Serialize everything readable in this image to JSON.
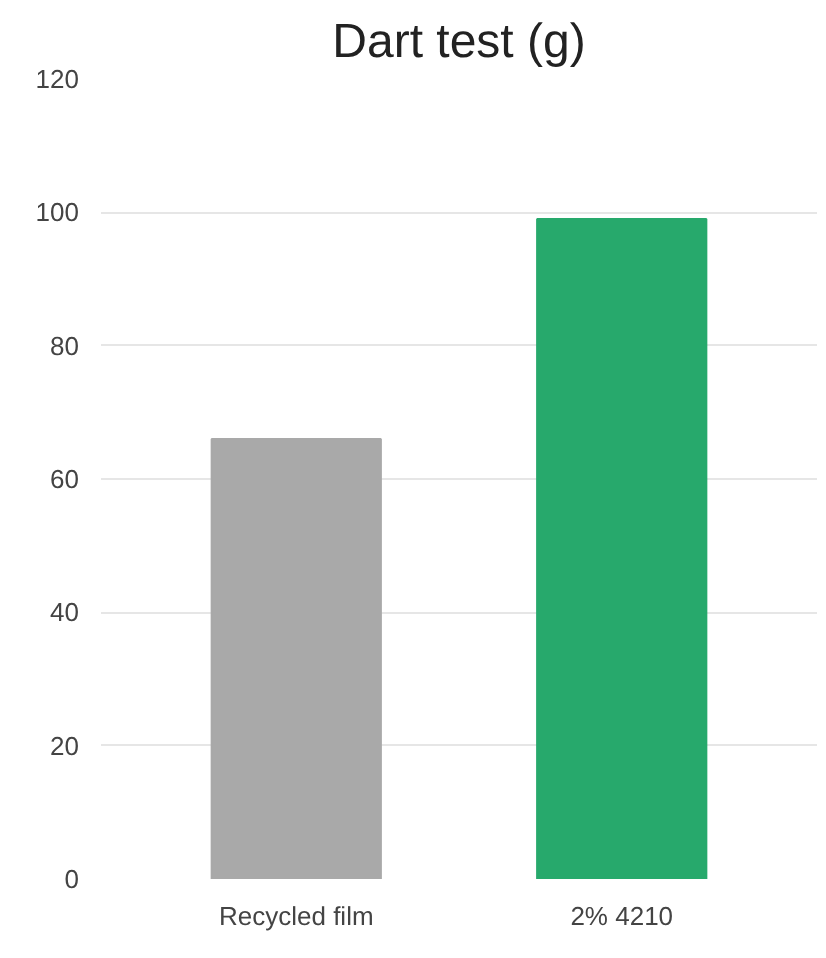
{
  "chart_data": {
    "type": "bar",
    "title": "Dart test (g)",
    "categories": [
      "Recycled film",
      "2% 4210"
    ],
    "values": [
      66,
      99
    ],
    "colors": [
      "#a9a9a9",
      "#27a96c"
    ],
    "ylim": [
      0,
      120
    ],
    "yticks": [
      0,
      20,
      40,
      60,
      80,
      100,
      120
    ],
    "grid": "y"
  }
}
